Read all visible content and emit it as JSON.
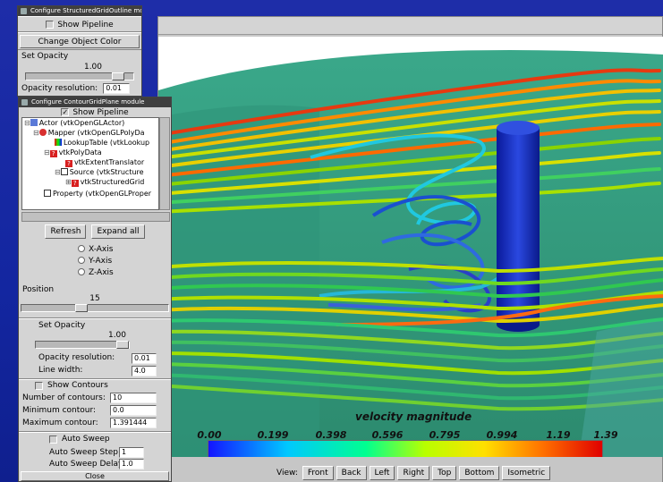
{
  "win1": {
    "title": "Configure StructuredGridOutline mod",
    "show_pipeline": "Show Pipeline",
    "change_color": "Change Object Color",
    "set_opacity": "Set Opacity",
    "opacity_value": "1.00",
    "opacity_res_label": "Opacity resolution:",
    "opacity_res_value": "0.01"
  },
  "win2": {
    "title": "Configure ContourGridPlane module",
    "show_pipeline": "Show Pipeline",
    "tree": [
      "Actor (vtkOpenGLActor)",
      "Mapper (vtkOpenGLPolyDa",
      "LookupTable (vtkLookup",
      "vtkPolyData",
      "vtkExtentTranslator",
      "Source (vtkStructure",
      "vtkStructuredGrid",
      "Property (vtkOpenGLProper"
    ],
    "refresh": "Refresh",
    "expand_all": "Expand all",
    "axes": [
      "X-Axis",
      "Y-Axis",
      "Z-Axis"
    ],
    "position_label": "Position",
    "position_value": "15",
    "set_opacity": "Set Opacity",
    "opacity_value": "1.00",
    "opacity_res_label": "Opacity resolution:",
    "opacity_res_value": "0.01",
    "line_width_label": "Line width:",
    "line_width_value": "4.0",
    "show_contours": "Show Contours",
    "num_contours_label": "Number of contours:",
    "num_contours_value": "10",
    "min_contour_label": "Minimum contour:",
    "min_contour_value": "0.0",
    "max_contour_label": "Maximum contour:",
    "max_contour_value": "1.391444",
    "auto_sweep": "Auto Sweep",
    "sweep_step_label": "Auto Sweep Step:",
    "sweep_step_value": "1",
    "sweep_delay_label": "Auto Sweep Delay:",
    "sweep_delay_value": "1.0",
    "close": "Close"
  },
  "scene": {
    "colorbar_title": "velocity magnitude",
    "colorbar_ticks": [
      "0.00",
      "0.199",
      "0.398",
      "0.596",
      "0.795",
      "0.994",
      "1.19",
      "1.39"
    ]
  },
  "viewbar": {
    "label": "View:",
    "buttons": [
      "Front",
      "Back",
      "Left",
      "Right",
      "Top",
      "Bottom",
      "Isometric"
    ]
  },
  "colors": {
    "desktop": "#1a2a9a",
    "window_bg": "#d4d4d4",
    "titlebar": "#3f3f3f"
  }
}
